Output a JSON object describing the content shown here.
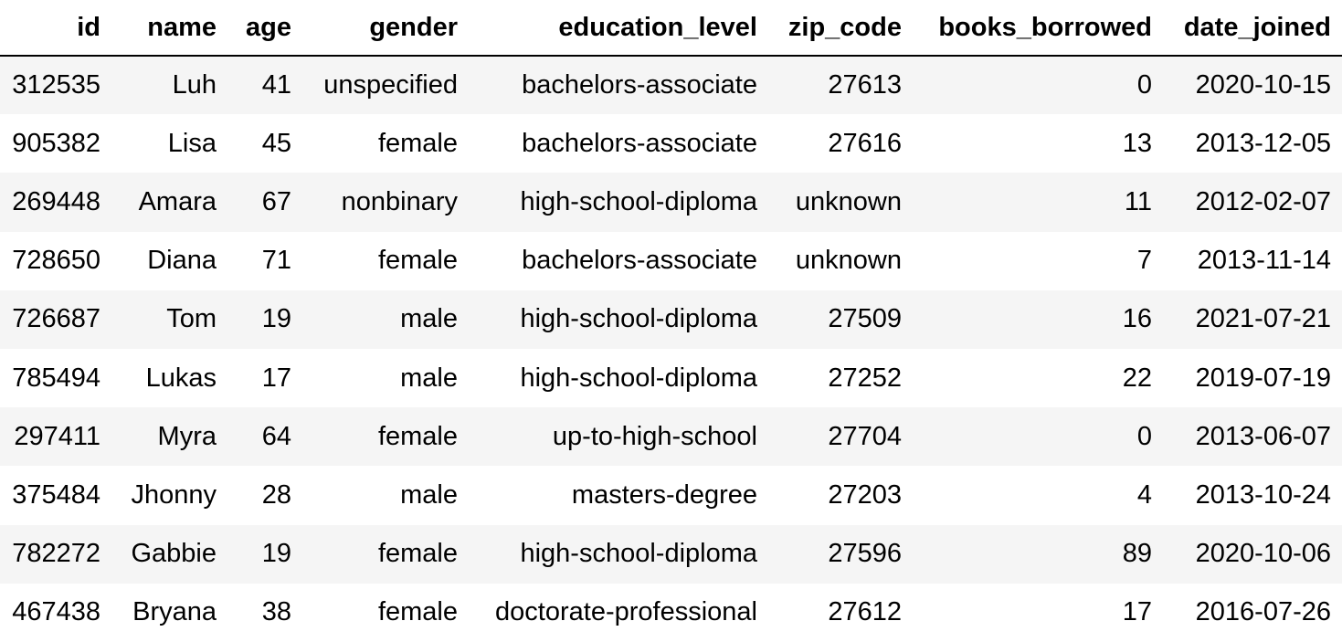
{
  "table": {
    "columns": [
      "id",
      "name",
      "age",
      "gender",
      "education_level",
      "zip_code",
      "books_borrowed",
      "date_joined"
    ],
    "rows": [
      [
        "312535",
        "Luh",
        "41",
        "unspecified",
        "bachelors-associate",
        "27613",
        "0",
        "2020-10-15"
      ],
      [
        "905382",
        "Lisa",
        "45",
        "female",
        "bachelors-associate",
        "27616",
        "13",
        "2013-12-05"
      ],
      [
        "269448",
        "Amara",
        "67",
        "nonbinary",
        "high-school-diploma",
        "unknown",
        "11",
        "2012-02-07"
      ],
      [
        "728650",
        "Diana",
        "71",
        "female",
        "bachelors-associate",
        "unknown",
        "7",
        "2013-11-14"
      ],
      [
        "726687",
        "Tom",
        "19",
        "male",
        "high-school-diploma",
        "27509",
        "16",
        "2021-07-21"
      ],
      [
        "785494",
        "Lukas",
        "17",
        "male",
        "high-school-diploma",
        "27252",
        "22",
        "2019-07-19"
      ],
      [
        "297411",
        "Myra",
        "64",
        "female",
        "up-to-high-school",
        "27704",
        "0",
        "2013-06-07"
      ],
      [
        "375484",
        "Jhonny",
        "28",
        "male",
        "masters-degree",
        "27203",
        "4",
        "2013-10-24"
      ],
      [
        "782272",
        "Gabbie",
        "19",
        "female",
        "high-school-diploma",
        "27596",
        "89",
        "2020-10-06"
      ],
      [
        "467438",
        "Bryana",
        "38",
        "female",
        "doctorate-professional",
        "27612",
        "17",
        "2016-07-26"
      ]
    ]
  }
}
